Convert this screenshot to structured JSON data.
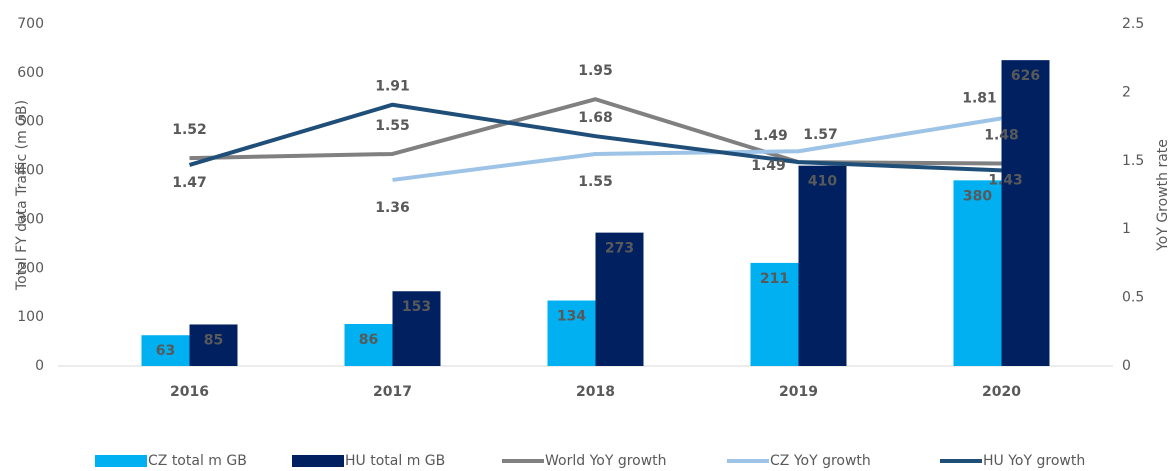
{
  "chart_data": {
    "type": "bar",
    "categories": [
      "2016",
      "2017",
      "2018",
      "2019",
      "2020"
    ],
    "series": [
      {
        "name": "CZ total m GB",
        "type": "bar",
        "color": "#00b0f0",
        "values": [
          63,
          86,
          134,
          211,
          380
        ]
      },
      {
        "name": "HU total m GB",
        "type": "bar",
        "color": "#002060",
        "values": [
          85,
          153,
          273,
          410,
          626
        ]
      },
      {
        "name": "World YoY growth",
        "type": "line",
        "axis": "y2",
        "color": "#808080",
        "values": [
          1.52,
          1.55,
          1.95,
          1.49,
          1.48
        ]
      },
      {
        "name": "CZ YoY growth",
        "type": "line",
        "axis": "y2",
        "color": "#9dc3e6",
        "values": [
          null,
          1.36,
          1.55,
          1.57,
          1.81
        ]
      },
      {
        "name": "HU YoY growth",
        "type": "line",
        "axis": "y2",
        "color": "#1f4e79",
        "values": [
          1.47,
          1.91,
          1.68,
          1.49,
          1.43
        ]
      }
    ],
    "ylabel": "Total FY data Traffic  (m GB)",
    "y2label": "YoY Growth rate",
    "ylim": [
      0,
      700
    ],
    "yticks": [
      0,
      100,
      200,
      300,
      400,
      500,
      600,
      700
    ],
    "y2lim": [
      0,
      2.5
    ],
    "y2ticks": [
      0,
      0.5,
      1,
      1.5,
      2,
      2.5
    ],
    "grid": false,
    "legend": "bottom"
  }
}
